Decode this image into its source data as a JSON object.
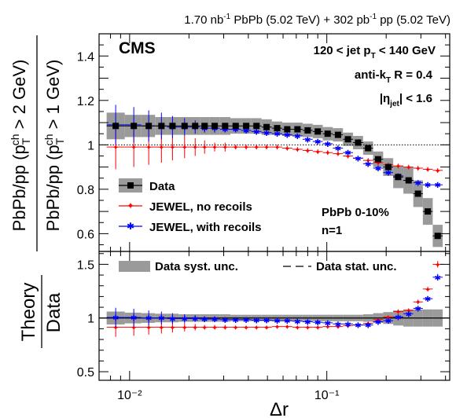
{
  "header": {
    "lumi": "1.70 nb⁻¹ PbPb (5.02 TeV) + 302 pb⁻¹ pp (5.02 TeV)"
  },
  "labels": {
    "experiment": "CMS",
    "jet_pt": "120 < jet pT < 140 GeV",
    "algorithm": "anti-kT R = 0.4",
    "eta": "|ηjet| < 1.6",
    "centrality": "PbPb 0-10%",
    "n": "n=1"
  },
  "colors": {
    "data": "#000000",
    "syst_band": "#9a9a9a",
    "no_recoil": "#ff0000",
    "with_recoil": "#0000ff",
    "reference_line": "#000000"
  },
  "chart_data": [
    {
      "type": "scatter",
      "panel": "top",
      "ylabel_outer": "PbPb/pp (pTch > 2 GeV)",
      "ylabel_inner": "PbPb/pp (pTch > 1 GeV)",
      "xscale": "log",
      "xlim": [
        0.007,
        0.42
      ],
      "ylim": [
        0.52,
        1.5
      ],
      "yticks": [
        "0.6",
        "0.8",
        "1",
        "1.2",
        "1.4"
      ],
      "reference_y": 1.0,
      "legend": {
        "placement": "bottom-left",
        "entries": [
          "Data",
          "JEWEL, no recoils",
          "JEWEL, with recoils"
        ]
      },
      "series": [
        {
          "name": "Data",
          "x": [
            0.0085,
            0.0105,
            0.0125,
            0.0145,
            0.0165,
            0.019,
            0.0215,
            0.024,
            0.027,
            0.0305,
            0.0345,
            0.039,
            0.044,
            0.0495,
            0.056,
            0.063,
            0.071,
            0.08,
            0.09,
            0.101,
            0.114,
            0.128,
            0.144,
            0.162,
            0.182,
            0.205,
            0.23,
            0.26,
            0.29,
            0.325,
            0.365
          ],
          "y": [
            1.085,
            1.085,
            1.085,
            1.085,
            1.085,
            1.085,
            1.085,
            1.085,
            1.085,
            1.085,
            1.085,
            1.085,
            1.085,
            1.08,
            1.075,
            1.07,
            1.07,
            1.065,
            1.06,
            1.05,
            1.045,
            1.025,
            1.01,
            0.985,
            0.935,
            0.9,
            0.855,
            0.84,
            0.78,
            0.7,
            0.59
          ],
          "syst": [
            0.06,
            0.05,
            0.05,
            0.04,
            0.04,
            0.04,
            0.04,
            0.04,
            0.04,
            0.04,
            0.035,
            0.035,
            0.035,
            0.035,
            0.03,
            0.03,
            0.03,
            0.03,
            0.03,
            0.03,
            0.03,
            0.03,
            0.03,
            0.03,
            0.035,
            0.04,
            0.05,
            0.06,
            0.06,
            0.06,
            0.05
          ]
        },
        {
          "name": "JEWEL, no recoils",
          "x": [
            0.0085,
            0.0105,
            0.0125,
            0.0145,
            0.0165,
            0.019,
            0.0215,
            0.024,
            0.027,
            0.0305,
            0.0345,
            0.039,
            0.044,
            0.0495,
            0.056,
            0.063,
            0.071,
            0.08,
            0.09,
            0.101,
            0.114,
            0.128,
            0.144,
            0.162,
            0.182,
            0.205,
            0.23,
            0.26,
            0.29,
            0.325,
            0.365
          ],
          "y": [
            0.99,
            0.99,
            0.99,
            0.99,
            0.99,
            0.99,
            0.99,
            0.99,
            0.99,
            0.99,
            0.99,
            0.99,
            0.99,
            0.99,
            0.99,
            0.985,
            0.98,
            0.975,
            0.97,
            0.965,
            0.96,
            0.95,
            0.94,
            0.93,
            0.92,
            0.91,
            0.905,
            0.9,
            0.895,
            0.89,
            0.885
          ],
          "err": [
            0.1,
            0.09,
            0.08,
            0.07,
            0.06,
            0.05,
            0.04,
            0.03,
            0.02,
            0.02,
            0.01,
            0.01,
            0.01,
            0.01,
            0.01,
            0.01,
            0.01,
            0.01,
            0.01,
            0.01,
            0.01,
            0.01,
            0.01,
            0.01,
            0.01,
            0.01,
            0.01,
            0.01,
            0.01,
            0.01,
            0.01
          ]
        },
        {
          "name": "JEWEL, with recoils",
          "x": [
            0.0085,
            0.0105,
            0.0125,
            0.0145,
            0.0165,
            0.019,
            0.0215,
            0.024,
            0.027,
            0.0305,
            0.0345,
            0.039,
            0.044,
            0.0495,
            0.056,
            0.063,
            0.071,
            0.08,
            0.09,
            0.101,
            0.114,
            0.128,
            0.144,
            0.162,
            0.182,
            0.205,
            0.23,
            0.26,
            0.29,
            0.325,
            0.365
          ],
          "y": [
            1.09,
            1.09,
            1.085,
            1.085,
            1.08,
            1.08,
            1.08,
            1.075,
            1.075,
            1.07,
            1.07,
            1.065,
            1.06,
            1.055,
            1.05,
            1.045,
            1.04,
            1.025,
            1.015,
            1.005,
            0.985,
            0.965,
            0.94,
            0.915,
            0.895,
            0.875,
            0.86,
            0.84,
            0.83,
            0.82,
            0.82
          ],
          "err": [
            0.09,
            0.08,
            0.07,
            0.06,
            0.05,
            0.04,
            0.03,
            0.02,
            0.02,
            0.01,
            0.01,
            0.01,
            0.01,
            0.01,
            0.01,
            0.01,
            0.01,
            0.01,
            0.01,
            0.01,
            0.01,
            0.01,
            0.01,
            0.01,
            0.01,
            0.01,
            0.01,
            0.01,
            0.01,
            0.01,
            0.01
          ]
        }
      ]
    },
    {
      "type": "scatter",
      "panel": "bottom",
      "ylabel_num": "Theory",
      "ylabel_den": "Data",
      "xlabel": "Δr",
      "xscale": "log",
      "xlim": [
        0.007,
        0.42
      ],
      "ylim": [
        0.42,
        1.62
      ],
      "yticks": [
        "0.5",
        "1",
        "1.5"
      ],
      "xticks": [
        "10⁻²",
        "10⁻¹"
      ],
      "reference_y": 1.0,
      "legend": {
        "placement": "top",
        "entries": [
          "Data syst. unc.",
          "Data stat. unc."
        ]
      },
      "syst_band": {
        "name": "Data syst. unc.",
        "x": [
          0.0085,
          0.0105,
          0.0125,
          0.0145,
          0.0165,
          0.019,
          0.0215,
          0.024,
          0.027,
          0.0305,
          0.0345,
          0.039,
          0.044,
          0.0495,
          0.056,
          0.063,
          0.071,
          0.08,
          0.09,
          0.101,
          0.114,
          0.128,
          0.144,
          0.162,
          0.182,
          0.205,
          0.23,
          0.26,
          0.29,
          0.325,
          0.365
        ],
        "half_width": [
          0.06,
          0.05,
          0.045,
          0.04,
          0.04,
          0.035,
          0.035,
          0.035,
          0.035,
          0.035,
          0.03,
          0.03,
          0.03,
          0.03,
          0.03,
          0.03,
          0.03,
          0.03,
          0.03,
          0.03,
          0.03,
          0.03,
          0.03,
          0.035,
          0.045,
          0.055,
          0.07,
          0.08,
          0.08,
          0.08,
          0.08
        ]
      },
      "series": [
        {
          "name": "JEWEL, no recoils",
          "x": [
            0.0085,
            0.0105,
            0.0125,
            0.0145,
            0.0165,
            0.019,
            0.0215,
            0.024,
            0.027,
            0.0305,
            0.0345,
            0.039,
            0.044,
            0.0495,
            0.056,
            0.063,
            0.071,
            0.08,
            0.09,
            0.101,
            0.114,
            0.128,
            0.144,
            0.162,
            0.182,
            0.205,
            0.23,
            0.26,
            0.29,
            0.325,
            0.365
          ],
          "y": [
            0.915,
            0.915,
            0.915,
            0.915,
            0.915,
            0.915,
            0.915,
            0.915,
            0.915,
            0.915,
            0.915,
            0.915,
            0.915,
            0.915,
            0.92,
            0.92,
            0.915,
            0.915,
            0.915,
            0.92,
            0.92,
            0.93,
            0.935,
            0.95,
            0.985,
            1.01,
            1.06,
            1.07,
            1.15,
            1.27,
            1.5
          ],
          "err": [
            0.09,
            0.08,
            0.07,
            0.06,
            0.05,
            0.04,
            0.03,
            0.02,
            0.02,
            0.02,
            0.01,
            0.01,
            0.01,
            0.01,
            0.01,
            0.01,
            0.01,
            0.01,
            0.01,
            0.01,
            0.01,
            0.01,
            0.01,
            0.01,
            0.01,
            0.01,
            0.02,
            0.02,
            0.02,
            0.02,
            0.03
          ]
        },
        {
          "name": "JEWEL, with recoils",
          "x": [
            0.0085,
            0.0105,
            0.0125,
            0.0145,
            0.0165,
            0.019,
            0.0215,
            0.024,
            0.027,
            0.0305,
            0.0345,
            0.039,
            0.044,
            0.0495,
            0.056,
            0.063,
            0.071,
            0.08,
            0.09,
            0.101,
            0.114,
            0.128,
            0.144,
            0.162,
            0.182,
            0.205,
            0.23,
            0.26,
            0.29,
            0.325,
            0.365
          ],
          "y": [
            1.005,
            1.005,
            1.0,
            1.0,
            0.995,
            0.995,
            0.995,
            0.99,
            0.99,
            0.985,
            0.985,
            0.985,
            0.98,
            0.98,
            0.975,
            0.975,
            0.97,
            0.965,
            0.96,
            0.955,
            0.945,
            0.945,
            0.935,
            0.935,
            0.965,
            0.975,
            1.01,
            1.04,
            1.09,
            1.18,
            1.38
          ],
          "err": [
            0.09,
            0.08,
            0.07,
            0.06,
            0.05,
            0.04,
            0.03,
            0.02,
            0.02,
            0.02,
            0.01,
            0.01,
            0.01,
            0.01,
            0.01,
            0.01,
            0.01,
            0.01,
            0.01,
            0.01,
            0.01,
            0.01,
            0.01,
            0.01,
            0.01,
            0.01,
            0.02,
            0.02,
            0.02,
            0.02,
            0.03
          ]
        }
      ]
    }
  ]
}
